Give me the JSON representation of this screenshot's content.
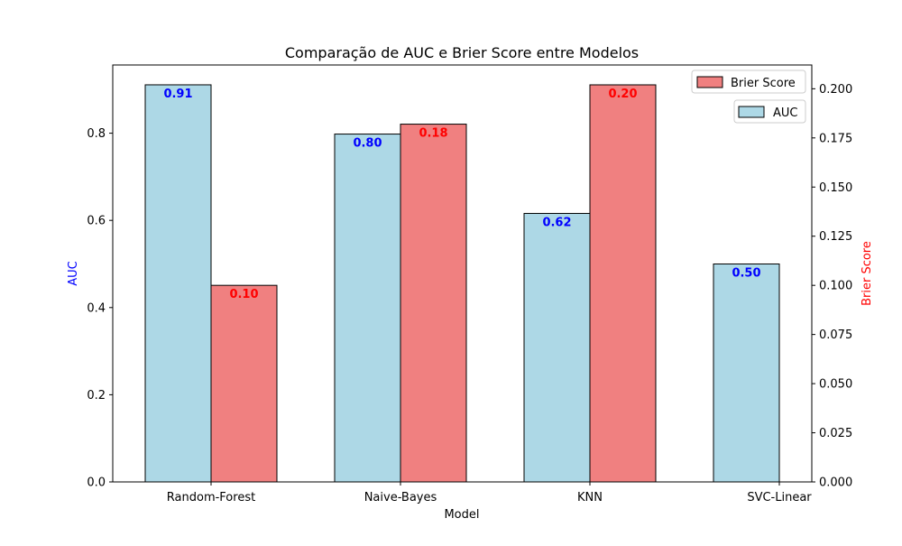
{
  "chart_data": {
    "type": "bar",
    "title": "Comparação de AUC e Brier Score entre Modelos",
    "xlabel": "Model",
    "categories": [
      "Random-Forest",
      "Naive-Bayes",
      "KNN",
      "SVC-Linear"
    ],
    "left_axis": {
      "label": "AUC",
      "label_color": "#0000ff",
      "ylim": [
        0,
        0.9565
      ],
      "ticks": [
        0.0,
        0.2,
        0.4,
        0.6,
        0.8
      ],
      "tick_labels": [
        "0.0",
        "0.2",
        "0.4",
        "0.6",
        "0.8"
      ]
    },
    "right_axis": {
      "label": "Brier Score",
      "label_color": "#ff0000",
      "ylim": [
        0,
        0.2121
      ],
      "ticks": [
        0.0,
        0.025,
        0.05,
        0.075,
        0.1,
        0.125,
        0.15,
        0.175,
        0.2
      ],
      "tick_labels": [
        "0.000",
        "0.025",
        "0.050",
        "0.075",
        "0.100",
        "0.125",
        "0.150",
        "0.175",
        "0.200"
      ]
    },
    "series": [
      {
        "name": "AUC",
        "axis": "left",
        "color": "#add8e6",
        "label_color": "#0000ff",
        "values": [
          0.911,
          0.798,
          0.616,
          0.5
        ],
        "data_labels": [
          "0.91",
          "0.80",
          "0.62",
          "0.50"
        ]
      },
      {
        "name": "Brier Score",
        "axis": "right",
        "color": "#f08080",
        "label_color": "#ff0000",
        "values": [
          0.1,
          0.182,
          0.202,
          null
        ],
        "data_labels": [
          "0.10",
          "0.18",
          "0.20",
          null
        ]
      }
    ],
    "legend": [
      "Brier Score",
      "AUC"
    ],
    "legend_placement": "top-right",
    "grid": false
  }
}
